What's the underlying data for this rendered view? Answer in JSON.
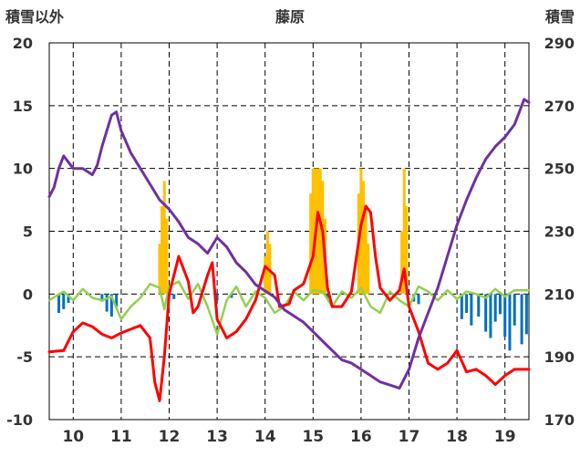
{
  "chart_data": {
    "type": "line",
    "title": "藤原",
    "left_axis_label": "積雪以外",
    "right_axis_label": "積雪",
    "left_ticks": [
      "20",
      "15",
      "10",
      "5",
      "0",
      "-5",
      "-10"
    ],
    "right_ticks": [
      "290",
      "270",
      "250",
      "230",
      "210",
      "190",
      "170"
    ],
    "x_ticks": [
      "10",
      "11",
      "12",
      "13",
      "14",
      "15",
      "16",
      "17",
      "18",
      "19"
    ],
    "xlim": [
      9.5,
      19.5
    ],
    "ylim_left": [
      -10,
      20
    ],
    "ylim_right": [
      170,
      290
    ],
    "grid": true,
    "colors": {
      "snow_depth": "#7030a0",
      "temperature": "#ff0000",
      "precipitation": "#ffc000",
      "sunshine": "#92d050",
      "negative_bars": "#0070c0"
    },
    "snow_depth": [
      [
        9.5,
        241
      ],
      [
        9.6,
        244
      ],
      [
        9.7,
        250
      ],
      [
        9.8,
        254
      ],
      [
        9.9,
        252
      ],
      [
        10.0,
        250
      ],
      [
        10.2,
        250
      ],
      [
        10.4,
        248
      ],
      [
        10.5,
        251
      ],
      [
        10.6,
        257
      ],
      [
        10.7,
        262
      ],
      [
        10.8,
        267
      ],
      [
        10.9,
        268
      ],
      [
        11.0,
        262
      ],
      [
        11.2,
        255
      ],
      [
        11.4,
        250
      ],
      [
        11.6,
        245
      ],
      [
        11.8,
        240
      ],
      [
        12.0,
        237
      ],
      [
        12.2,
        233
      ],
      [
        12.4,
        228
      ],
      [
        12.6,
        226
      ],
      [
        12.8,
        223
      ],
      [
        13.0,
        228
      ],
      [
        13.2,
        225
      ],
      [
        13.4,
        220
      ],
      [
        13.6,
        217
      ],
      [
        13.8,
        213
      ],
      [
        14.0,
        211
      ],
      [
        14.2,
        209
      ],
      [
        14.4,
        205
      ],
      [
        14.6,
        203
      ],
      [
        14.8,
        201
      ],
      [
        15.0,
        198
      ],
      [
        15.2,
        195
      ],
      [
        15.4,
        192
      ],
      [
        15.6,
        189
      ],
      [
        15.8,
        188
      ],
      [
        16.0,
        186
      ],
      [
        16.2,
        184
      ],
      [
        16.4,
        182
      ],
      [
        16.6,
        181
      ],
      [
        16.8,
        180
      ],
      [
        17.0,
        186
      ],
      [
        17.2,
        196
      ],
      [
        17.4,
        204
      ],
      [
        17.6,
        212
      ],
      [
        17.8,
        222
      ],
      [
        18.0,
        232
      ],
      [
        18.2,
        240
      ],
      [
        18.4,
        247
      ],
      [
        18.6,
        253
      ],
      [
        18.8,
        257
      ],
      [
        19.0,
        260
      ],
      [
        19.2,
        264
      ],
      [
        19.3,
        268
      ],
      [
        19.4,
        272
      ],
      [
        19.5,
        271
      ]
    ],
    "temperature": [
      [
        9.5,
        -4.6
      ],
      [
        9.8,
        -4.5
      ],
      [
        10.0,
        -3.0
      ],
      [
        10.2,
        -2.3
      ],
      [
        10.4,
        -2.6
      ],
      [
        10.6,
        -3.2
      ],
      [
        10.8,
        -3.5
      ],
      [
        11.0,
        -3.1
      ],
      [
        11.2,
        -2.8
      ],
      [
        11.4,
        -2.5
      ],
      [
        11.6,
        -3.5
      ],
      [
        11.7,
        -7.0
      ],
      [
        11.8,
        -8.5
      ],
      [
        11.9,
        -5.0
      ],
      [
        12.0,
        0.0
      ],
      [
        12.2,
        3.0
      ],
      [
        12.4,
        1.0
      ],
      [
        12.5,
        -1.5
      ],
      [
        12.6,
        -1.0
      ],
      [
        12.8,
        1.5
      ],
      [
        12.9,
        2.5
      ],
      [
        13.0,
        -2.0
      ],
      [
        13.2,
        -3.5
      ],
      [
        13.4,
        -3.0
      ],
      [
        13.6,
        -2.0
      ],
      [
        13.8,
        -0.5
      ],
      [
        14.0,
        2.2
      ],
      [
        14.2,
        1.5
      ],
      [
        14.3,
        -1.0
      ],
      [
        14.5,
        -0.8
      ],
      [
        14.6,
        0.3
      ],
      [
        14.8,
        0.8
      ],
      [
        15.0,
        3.0
      ],
      [
        15.1,
        6.5
      ],
      [
        15.2,
        5.0
      ],
      [
        15.3,
        0.5
      ],
      [
        15.4,
        -1.0
      ],
      [
        15.6,
        -1.0
      ],
      [
        15.8,
        0.2
      ],
      [
        16.0,
        5.5
      ],
      [
        16.1,
        7.0
      ],
      [
        16.2,
        6.5
      ],
      [
        16.3,
        3.0
      ],
      [
        16.4,
        0.5
      ],
      [
        16.6,
        -0.5
      ],
      [
        16.8,
        0.3
      ],
      [
        16.9,
        2.0
      ],
      [
        17.0,
        -1.0
      ],
      [
        17.2,
        -3.0
      ],
      [
        17.4,
        -5.5
      ],
      [
        17.6,
        -6.0
      ],
      [
        17.8,
        -5.5
      ],
      [
        18.0,
        -4.5
      ],
      [
        18.2,
        -6.2
      ],
      [
        18.4,
        -6.0
      ],
      [
        18.6,
        -6.5
      ],
      [
        18.8,
        -7.2
      ],
      [
        19.0,
        -6.5
      ],
      [
        19.2,
        -6.0
      ],
      [
        19.5,
        -6.0
      ]
    ],
    "sunshine": [
      [
        9.5,
        -0.5
      ],
      [
        9.8,
        0.2
      ],
      [
        10.0,
        -0.5
      ],
      [
        10.2,
        0.4
      ],
      [
        10.4,
        -0.3
      ],
      [
        10.6,
        -0.5
      ],
      [
        10.8,
        -0.2
      ],
      [
        11.0,
        -2.0
      ],
      [
        11.2,
        -1.0
      ],
      [
        11.4,
        -0.3
      ],
      [
        11.6,
        0.8
      ],
      [
        11.8,
        0.5
      ],
      [
        11.9,
        -1.2
      ],
      [
        12.0,
        0.6
      ],
      [
        12.2,
        1.0
      ],
      [
        12.4,
        -0.4
      ],
      [
        12.6,
        0.8
      ],
      [
        12.8,
        -1.0
      ],
      [
        13.0,
        -3.2
      ],
      [
        13.2,
        -0.5
      ],
      [
        13.4,
        0.6
      ],
      [
        13.6,
        -1.0
      ],
      [
        13.8,
        0.2
      ],
      [
        14.0,
        -0.3
      ],
      [
        14.2,
        -1.5
      ],
      [
        14.4,
        -1.0
      ],
      [
        14.6,
        0.2
      ],
      [
        14.8,
        -0.5
      ],
      [
        15.0,
        0.3
      ],
      [
        15.2,
        0.2
      ],
      [
        15.4,
        -1.0
      ],
      [
        15.6,
        0.2
      ],
      [
        15.8,
        -0.3
      ],
      [
        16.0,
        0.5
      ],
      [
        16.2,
        -1.0
      ],
      [
        16.4,
        -1.5
      ],
      [
        16.6,
        0.2
      ],
      [
        16.8,
        -0.5
      ],
      [
        17.0,
        -1.0
      ],
      [
        17.2,
        0.6
      ],
      [
        17.4,
        0.2
      ],
      [
        17.6,
        -0.5
      ],
      [
        17.8,
        0.3
      ],
      [
        18.0,
        -0.4
      ],
      [
        18.2,
        0.2
      ],
      [
        18.4,
        0.0
      ],
      [
        18.6,
        -0.3
      ],
      [
        18.8,
        0.4
      ],
      [
        19.0,
        -0.2
      ],
      [
        19.2,
        0.3
      ],
      [
        19.5,
        0.3
      ]
    ],
    "precipitation": [
      [
        11.8,
        4
      ],
      [
        11.85,
        7
      ],
      [
        11.9,
        9
      ],
      [
        11.95,
        6
      ],
      [
        14.0,
        3
      ],
      [
        14.05,
        5
      ],
      [
        14.1,
        4
      ],
      [
        14.95,
        8
      ],
      [
        15.0,
        10
      ],
      [
        15.05,
        10
      ],
      [
        15.1,
        10
      ],
      [
        15.15,
        10
      ],
      [
        15.2,
        9
      ],
      [
        15.25,
        6
      ],
      [
        15.95,
        8
      ],
      [
        16.0,
        10
      ],
      [
        16.05,
        9
      ],
      [
        16.1,
        7
      ],
      [
        16.15,
        4
      ],
      [
        16.85,
        5
      ],
      [
        16.9,
        10
      ],
      [
        16.95,
        7
      ]
    ],
    "negative_bars": [
      [
        9.7,
        -1.5
      ],
      [
        9.8,
        -1.2
      ],
      [
        9.9,
        -0.7
      ],
      [
        10.6,
        -0.6
      ],
      [
        10.7,
        -1.4
      ],
      [
        10.8,
        -1.8
      ],
      [
        10.9,
        -1.0
      ],
      [
        12.1,
        -0.4
      ],
      [
        13.0,
        -0.5
      ],
      [
        13.3,
        -0.3
      ],
      [
        15.3,
        -0.3
      ],
      [
        17.1,
        -0.6
      ],
      [
        17.2,
        -0.8
      ],
      [
        18.1,
        -2.0
      ],
      [
        18.2,
        -1.5
      ],
      [
        18.3,
        -2.5
      ],
      [
        18.45,
        -1.8
      ],
      [
        18.6,
        -3.0
      ],
      [
        18.7,
        -3.5
      ],
      [
        18.8,
        -2.2
      ],
      [
        18.9,
        -1.6
      ],
      [
        19.0,
        -3.4
      ],
      [
        19.1,
        -4.5
      ],
      [
        19.2,
        -2.5
      ],
      [
        19.35,
        -4.0
      ],
      [
        19.45,
        -3.2
      ]
    ]
  }
}
